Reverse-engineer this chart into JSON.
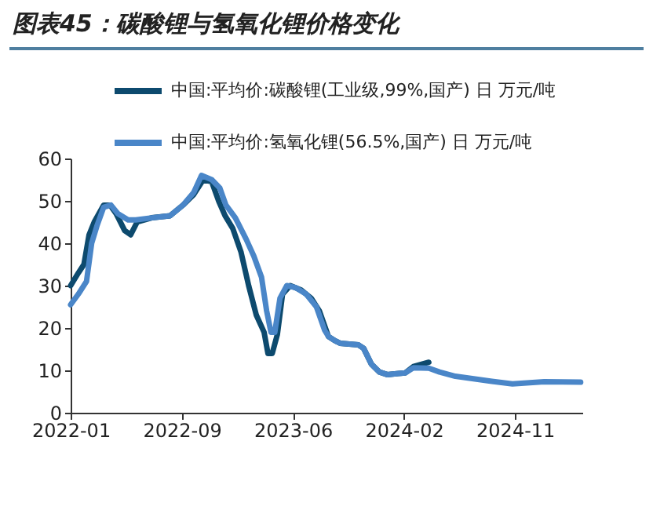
{
  "chart_data": {
    "type": "line",
    "title": "图表45：碳酸锂与氢氧化锂价格变化",
    "series": [
      {
        "name": "中国:平均价:碳酸锂(工业级,99%,国产) 日 万元/吨",
        "color": "#0d4a6e",
        "x": [
          "2022-01-04",
          "2022-01-22",
          "2022-02-04",
          "2022-02-16",
          "2022-02-28",
          "2022-03-22",
          "2022-04-06",
          "2022-04-20",
          "2022-05-10",
          "2022-05-24",
          "2022-06-08",
          "2022-07-12",
          "2022-08-24",
          "2022-09-23",
          "2022-10-18",
          "2022-11-09",
          "2022-11-29",
          "2022-12-15",
          "2022-12-30",
          "2023-01-17",
          "2023-02-05",
          "2023-02-23",
          "2023-03-13",
          "2023-03-31",
          "2023-04-09",
          "2023-04-19",
          "2023-05-01",
          "2023-05-13",
          "2023-05-31",
          "2023-06-25",
          "2023-07-19",
          "2023-08-07",
          "2023-08-28",
          "2023-09-12",
          "2023-09-24",
          "2023-11-06",
          "2023-11-18",
          "2023-12-06",
          "2023-12-25",
          "2024-01-12",
          "2024-02-23",
          "2024-03-13",
          "2024-04-18"
        ],
        "values": [
          30,
          33,
          35,
          42,
          45,
          49,
          49,
          47,
          43,
          42,
          45,
          46,
          46.5,
          49,
          51.5,
          55,
          54.5,
          50,
          46.5,
          43.5,
          38,
          30,
          23,
          19,
          14,
          14,
          18.5,
          28,
          30,
          29,
          27,
          24,
          18,
          17,
          16.4,
          16,
          15.2,
          11.5,
          9.6,
          9,
          9.4,
          10.9,
          11.9
        ]
      },
      {
        "name": "中国:平均价:氢氧化锂(56.5%,国产) 日 万元/吨",
        "color": "#4a86c8",
        "x": [
          "2022-01-04",
          "2022-01-22",
          "2022-02-10",
          "2022-02-22",
          "2022-03-06",
          "2022-03-22",
          "2022-04-08",
          "2022-04-24",
          "2022-05-18",
          "2022-06-05",
          "2022-07-12",
          "2022-08-24",
          "2022-09-23",
          "2022-10-18",
          "2022-11-05",
          "2022-11-29",
          "2022-12-18",
          "2023-01-01",
          "2023-01-23",
          "2023-02-17",
          "2023-03-07",
          "2023-03-25",
          "2023-04-06",
          "2023-04-16",
          "2023-04-25",
          "2023-05-07",
          "2023-05-23",
          "2023-06-13",
          "2023-07-07",
          "2023-07-31",
          "2023-08-19",
          "2023-08-28",
          "2023-09-12",
          "2023-09-24",
          "2023-11-06",
          "2023-11-18",
          "2023-12-06",
          "2023-12-25",
          "2024-01-12",
          "2024-02-23",
          "2024-03-13",
          "2024-04-18",
          "2024-05-13",
          "2024-06-19",
          "2024-07-25",
          "2024-09-12",
          "2024-10-30",
          "2025-01-12",
          "2025-04-07"
        ],
        "values": [
          25.5,
          28,
          31,
          40,
          44,
          48.5,
          49,
          47,
          45.5,
          45.5,
          46,
          46.5,
          49,
          52,
          56,
          55,
          53,
          49,
          46,
          41,
          37,
          32,
          24,
          19,
          19,
          27,
          30,
          29.5,
          28,
          25,
          19.5,
          18,
          17,
          16.4,
          16,
          15.2,
          11.5,
          9.6,
          9,
          9.4,
          10.6,
          10.5,
          9.6,
          8.6,
          8.1,
          7.4,
          6.8,
          7.3,
          7.2
        ]
      }
    ],
    "xlim": [
      "2022-01-04",
      "2025-04-11"
    ],
    "xticks": [
      {
        "value": "2022-01-04",
        "label": "2022-01"
      },
      {
        "value": "2022-09-20",
        "label": "2022-09"
      },
      {
        "value": "2023-06-06",
        "label": "2023-06"
      },
      {
        "value": "2024-02-20",
        "label": "2024-02"
      },
      {
        "value": "2024-11-05",
        "label": "2024-11"
      }
    ],
    "ylim": [
      0,
      60
    ],
    "yticks": [
      0,
      10,
      20,
      30,
      40,
      50,
      60
    ],
    "grid": false,
    "legend": "top"
  }
}
